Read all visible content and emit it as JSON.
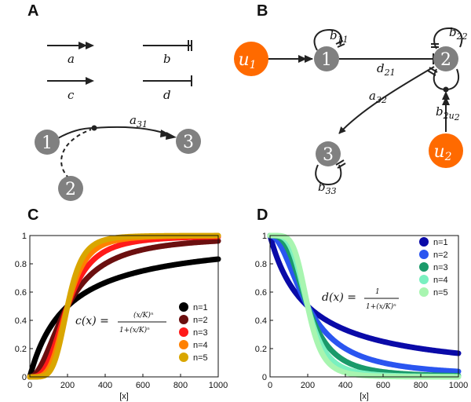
{
  "panels": {
    "A": {
      "label": "A",
      "edge_types": [
        {
          "symbol": "a",
          "kind": "double-arrow"
        },
        {
          "symbol": "b",
          "kind": "double-bar"
        },
        {
          "symbol": "c",
          "kind": "arrow"
        },
        {
          "symbol": "d",
          "kind": "bar"
        }
      ],
      "example": {
        "node1": "1",
        "node2": "2",
        "node3": "3",
        "edge": "a",
        "edge_sub": "31"
      }
    },
    "B": {
      "label": "B",
      "nodes": {
        "n1": "1",
        "n2": "2",
        "n3": "3",
        "u1": "u",
        "u1_sub": "1",
        "u2": "u",
        "u2_sub": "2"
      },
      "edges": {
        "b11": "b",
        "b11_sub": "11",
        "d21": "d",
        "d21_sub": "21",
        "b22": "b",
        "b22_sub": "22",
        "a32": "a",
        "a32_sub": "32",
        "b33": "b",
        "b33_sub": "33",
        "b2u2": "b",
        "b2u2_sub": "2u",
        "b2u2_sub2": "2"
      }
    },
    "C": {
      "label": "C",
      "formula": "c(x) ="
    },
    "D": {
      "label": "D",
      "formula": "d(x) ="
    }
  },
  "chart_data": [
    {
      "type": "line",
      "panel": "C",
      "formula": "c(x) = (x/K)^n / (1 + (x/K)^n)",
      "xlabel": "[x]",
      "xlim": [
        0,
        1000
      ],
      "ylim": [
        0,
        1
      ],
      "x_ticks": [
        "0",
        "200",
        "400",
        "600",
        "800",
        "1000"
      ],
      "y_ticks": [
        "0",
        "0.2",
        "0.4",
        "0.6",
        "0.8",
        "1"
      ],
      "K": 200,
      "legend_position": "bottom-right",
      "series": [
        {
          "name": "n=1",
          "n": 1,
          "color": "#000000"
        },
        {
          "name": "n=2",
          "n": 2,
          "color": "#6b0f0f"
        },
        {
          "name": "n=3",
          "n": 3,
          "color": "#ff1a1a"
        },
        {
          "name": "n=4",
          "n": 4,
          "color": "#ff8000"
        },
        {
          "name": "n=5",
          "n": 5,
          "color": "#d9a600"
        }
      ]
    },
    {
      "type": "line",
      "panel": "D",
      "formula": "d(x) = 1 / (1 + (x/K)^n)",
      "xlabel": "[x]",
      "xlim": [
        0,
        1000
      ],
      "ylim": [
        0,
        1
      ],
      "x_ticks": [
        "0",
        "200",
        "400",
        "600",
        "800",
        "1000"
      ],
      "y_ticks": [
        "0",
        "0.2",
        "0.4",
        "0.6",
        "0.8",
        "1"
      ],
      "K": 200,
      "legend_position": "top-right",
      "series": [
        {
          "name": "n=1",
          "n": 1,
          "color": "#0a0aa8"
        },
        {
          "name": "n=2",
          "n": 2,
          "color": "#2a55f0"
        },
        {
          "name": "n=3",
          "n": 3,
          "color": "#1a9a6a"
        },
        {
          "name": "n=4",
          "n": 4,
          "color": "#7af0c0"
        },
        {
          "name": "n=5",
          "n": 5,
          "color": "#a8f5b0"
        }
      ]
    }
  ],
  "colors": {
    "node": "#808080",
    "input": "#ff6a00",
    "edge": "#222222"
  }
}
